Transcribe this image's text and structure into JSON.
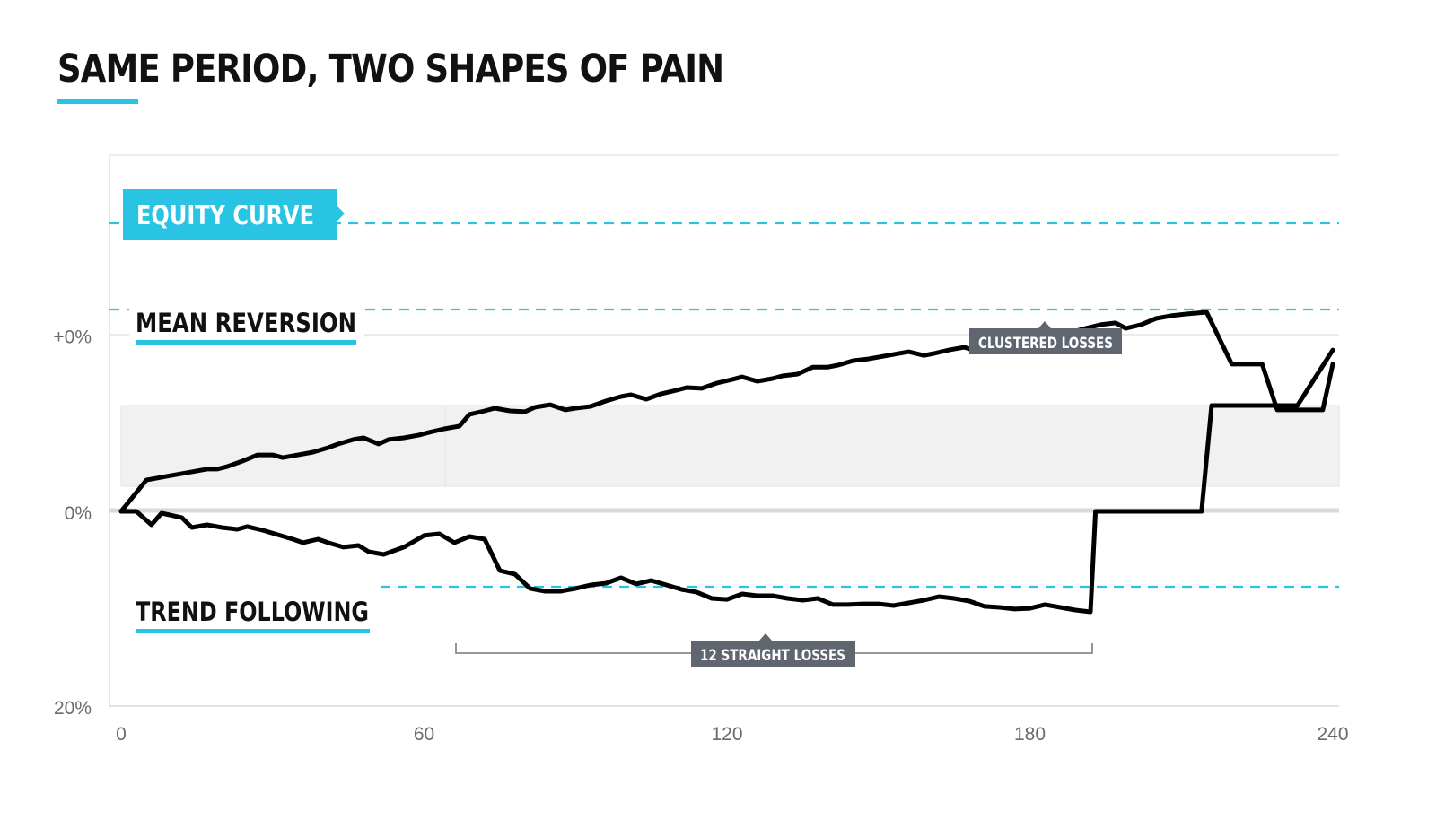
{
  "title": "SAME PERIOD, TWO SHAPES OF PAIN",
  "colors": {
    "accent": "#29c4e3",
    "line": "#000000",
    "callout": "#5f6670",
    "band": "#f1f1f1"
  },
  "chart_data": {
    "type": "line",
    "title": "SAME PERIOD, TWO SHAPES OF PAIN",
    "xlabel": "",
    "ylabel": "",
    "xlim": [
      0,
      240
    ],
    "x_ticks": [
      {
        "value": 0,
        "label": "0"
      },
      {
        "value": 60,
        "label": "60"
      },
      {
        "value": 120,
        "label": "120"
      },
      {
        "value": 180,
        "label": "180"
      },
      {
        "value": 240,
        "label": "240"
      }
    ],
    "y_ticks": [
      {
        "label": "+0%",
        "level": 0.906
      },
      {
        "label": "0%",
        "level": 0
      },
      {
        "label": "20%",
        "level": -1
      }
    ],
    "grid": false,
    "series": [
      {
        "name": "MEAN REVERSION",
        "points": [
          [
            0,
            0
          ],
          [
            5,
            0.161
          ],
          [
            9,
            0.18
          ],
          [
            12,
            0.194
          ],
          [
            14,
            0.203
          ],
          [
            17,
            0.217
          ],
          [
            19,
            0.217
          ],
          [
            21,
            0.23
          ],
          [
            24,
            0.258
          ],
          [
            27,
            0.29
          ],
          [
            30,
            0.29
          ],
          [
            32,
            0.276
          ],
          [
            35,
            0.29
          ],
          [
            38,
            0.304
          ],
          [
            41,
            0.327
          ],
          [
            43,
            0.346
          ],
          [
            46,
            0.369
          ],
          [
            48,
            0.378
          ],
          [
            51,
            0.346
          ],
          [
            53,
            0.369
          ],
          [
            56,
            0.378
          ],
          [
            59,
            0.392
          ],
          [
            61,
            0.406
          ],
          [
            64,
            0.424
          ],
          [
            67,
            0.438
          ],
          [
            69,
            0.498
          ],
          [
            72,
            0.516
          ],
          [
            74,
            0.53
          ],
          [
            77,
            0.516
          ],
          [
            80,
            0.512
          ],
          [
            82,
            0.535
          ],
          [
            85,
            0.548
          ],
          [
            88,
            0.521
          ],
          [
            90,
            0.53
          ],
          [
            93,
            0.539
          ],
          [
            96,
            0.567
          ],
          [
            99,
            0.59
          ],
          [
            101,
            0.599
          ],
          [
            104,
            0.576
          ],
          [
            107,
            0.604
          ],
          [
            110,
            0.622
          ],
          [
            112,
            0.636
          ],
          [
            115,
            0.632
          ],
          [
            118,
            0.659
          ],
          [
            121,
            0.677
          ],
          [
            123,
            0.691
          ],
          [
            126,
            0.668
          ],
          [
            129,
            0.682
          ],
          [
            131,
            0.696
          ],
          [
            134,
            0.705
          ],
          [
            137,
            0.741
          ],
          [
            140,
            0.741
          ],
          [
            142,
            0.751
          ],
          [
            145,
            0.774
          ],
          [
            148,
            0.783
          ],
          [
            151,
            0.797
          ],
          [
            153,
            0.806
          ],
          [
            156,
            0.82
          ],
          [
            159,
            0.801
          ],
          [
            161,
            0.811
          ],
          [
            164,
            0.829
          ],
          [
            167,
            0.843
          ],
          [
            170,
            0.82
          ],
          [
            172,
            0.843
          ],
          [
            175,
            0.857
          ],
          [
            178,
            0.866
          ],
          [
            181,
            0.889
          ],
          [
            183,
            0.894
          ],
          [
            186,
            0.912
          ],
          [
            189,
            0.926
          ],
          [
            191,
            0.94
          ],
          [
            194,
            0.959
          ],
          [
            197,
            0.968
          ],
          [
            199,
            0.94
          ],
          [
            202,
            0.959
          ],
          [
            205,
            0.991
          ],
          [
            208,
            1.005
          ],
          [
            211,
            1.014
          ],
          [
            215,
            1.023
          ],
          [
            220,
            0.756
          ],
          [
            222,
            0.756
          ],
          [
            226,
            0.756
          ],
          [
            229,
            0.521
          ],
          [
            231,
            0.521
          ],
          [
            234,
            0.521
          ],
          [
            238,
            0.521
          ],
          [
            240,
            0.756
          ]
        ]
      },
      {
        "name": "TREND FOLLOWING",
        "points": [
          [
            0,
            0
          ],
          [
            3,
            0
          ],
          [
            6,
            -0.069
          ],
          [
            8,
            -0.009
          ],
          [
            12,
            -0.032
          ],
          [
            14,
            -0.083
          ],
          [
            17,
            -0.069
          ],
          [
            20,
            -0.083
          ],
          [
            23,
            -0.092
          ],
          [
            25,
            -0.078
          ],
          [
            28,
            -0.097
          ],
          [
            31,
            -0.12
          ],
          [
            34,
            -0.143
          ],
          [
            36,
            -0.161
          ],
          [
            39,
            -0.143
          ],
          [
            41,
            -0.161
          ],
          [
            44,
            -0.184
          ],
          [
            47,
            -0.175
          ],
          [
            49,
            -0.207
          ],
          [
            52,
            -0.221
          ],
          [
            56,
            -0.184
          ],
          [
            60,
            -0.124
          ],
          [
            63,
            -0.115
          ],
          [
            66,
            -0.161
          ],
          [
            69,
            -0.129
          ],
          [
            72,
            -0.143
          ],
          [
            75,
            -0.304
          ],
          [
            78,
            -0.323
          ],
          [
            81,
            -0.396
          ],
          [
            84,
            -0.41
          ],
          [
            87,
            -0.41
          ],
          [
            90,
            -0.396
          ],
          [
            93,
            -0.378
          ],
          [
            96,
            -0.369
          ],
          [
            99,
            -0.341
          ],
          [
            102,
            -0.373
          ],
          [
            105,
            -0.355
          ],
          [
            108,
            -0.378
          ],
          [
            111,
            -0.401
          ],
          [
            114,
            -0.415
          ],
          [
            117,
            -0.447
          ],
          [
            120,
            -0.452
          ],
          [
            123,
            -0.424
          ],
          [
            126,
            -0.433
          ],
          [
            129,
            -0.433
          ],
          [
            132,
            -0.447
          ],
          [
            135,
            -0.456
          ]
        ]
      }
    ],
    "series_plot_fragment_note": "",
    "annotations": [
      "CLUSTERED LOSSES",
      "12 STRAIGHT LOSSES"
    ]
  },
  "labels": {
    "equity_curve": "EQUITY CURVE",
    "mean_reversion": "MEAN REVERSION",
    "trend_following": "TREND FOLLOWING",
    "clustered_losses": "CLUSTERED LOSSES",
    "straight_losses": "12 STRAIGHT LOSSES"
  }
}
